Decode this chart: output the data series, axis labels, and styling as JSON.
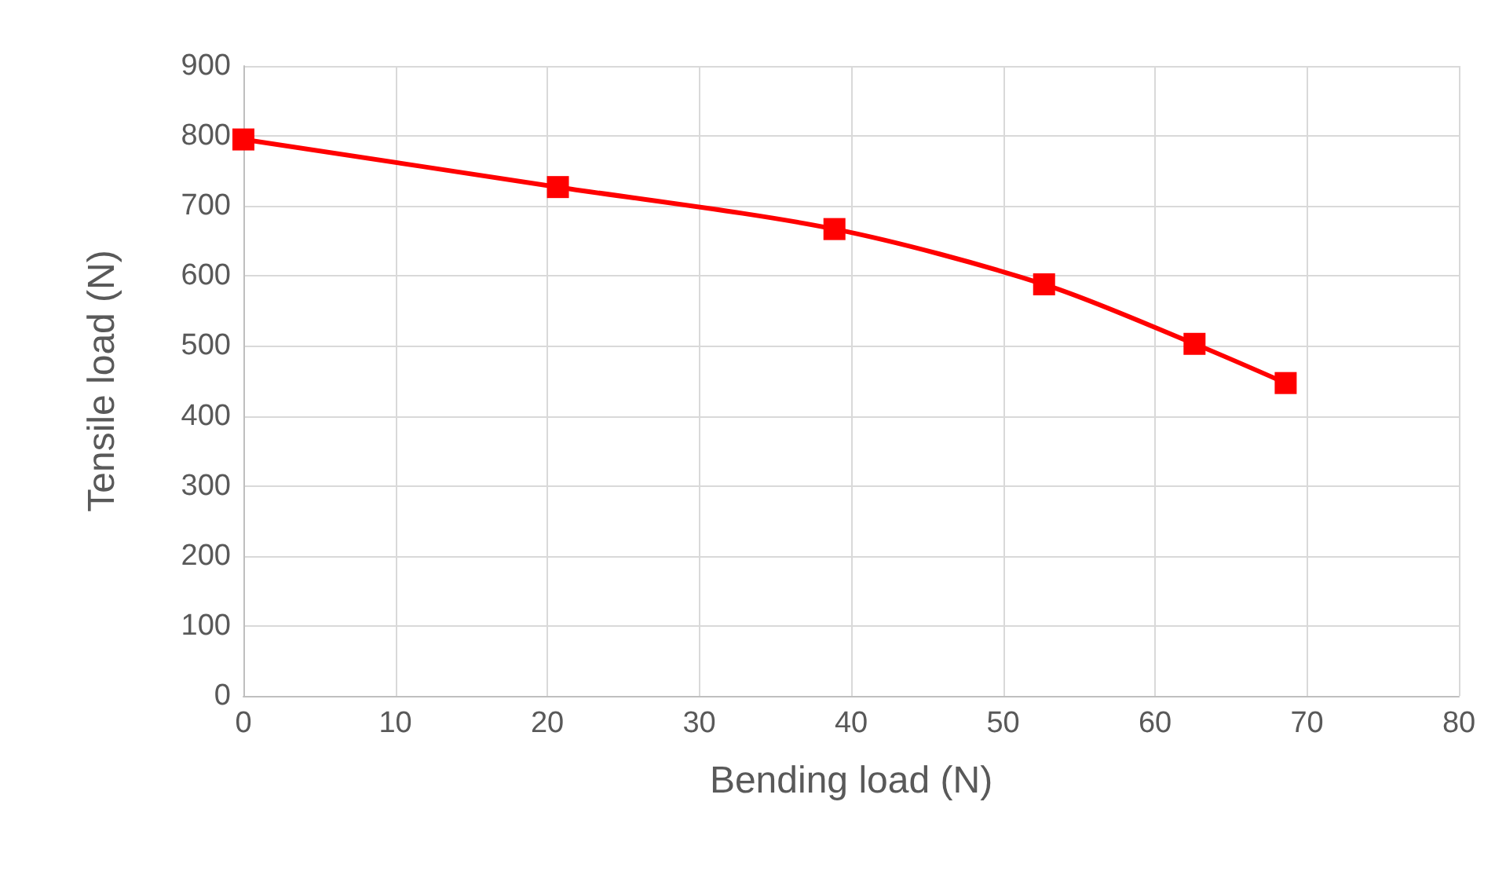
{
  "chart_data": {
    "type": "line",
    "xlabel": "Bending load (N)",
    "ylabel": "Tensile load (N)",
    "x": [
      0,
      20.7,
      38.9,
      52.7,
      62.6,
      68.6
    ],
    "series": [
      {
        "color": "#ff0000",
        "values": [
          795,
          727,
          667,
          588,
          503,
          447
        ]
      }
    ],
    "xlim": [
      0,
      80
    ],
    "xticks": [
      0,
      10,
      20,
      30,
      40,
      50,
      60,
      70,
      80
    ],
    "ylim": [
      0,
      900
    ],
    "yticks": [
      0,
      100,
      200,
      300,
      400,
      500,
      600,
      700,
      800,
      900
    ],
    "grid": true,
    "marker": "square",
    "line_style": "solid"
  }
}
